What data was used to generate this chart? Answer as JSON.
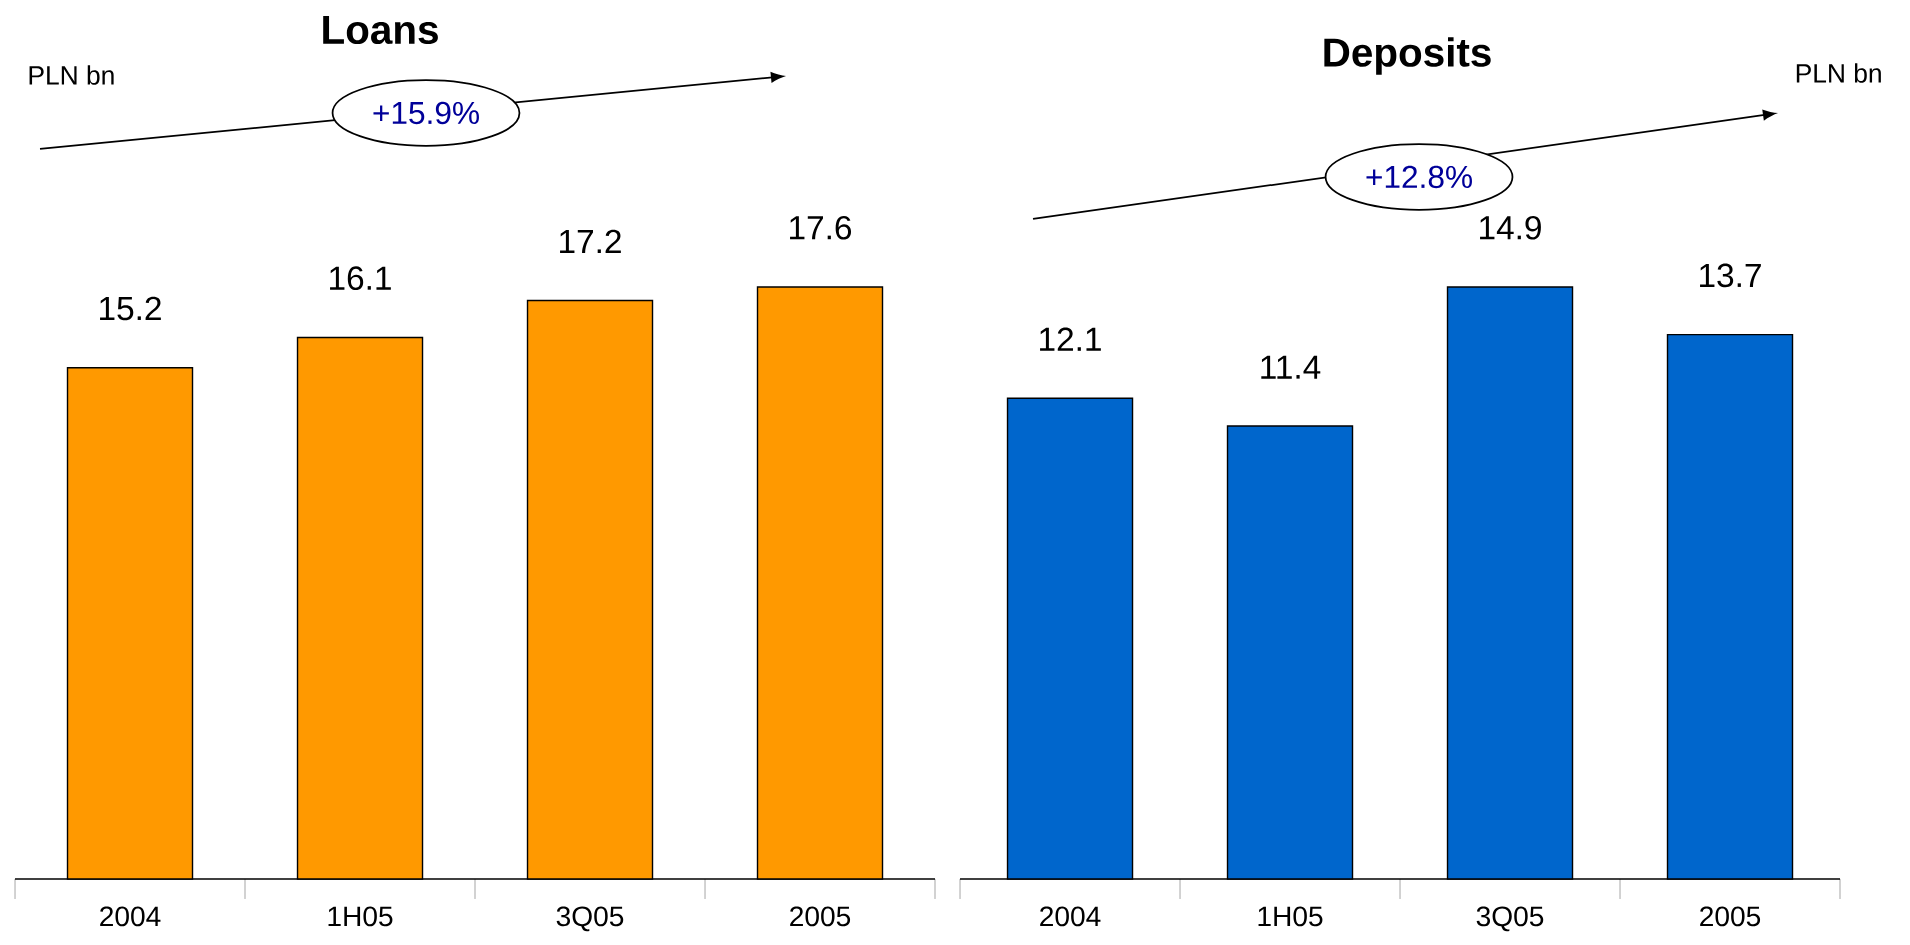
{
  "chart_data": [
    {
      "type": "bar",
      "title": "Loans",
      "categories": [
        "2004",
        "1H05",
        "3Q05",
        "2005"
      ],
      "values": [
        15.2,
        16.1,
        17.2,
        17.6
      ],
      "color": "#ff9900",
      "data_labels": true,
      "annotations": [
        "PLN bn",
        "+15.9%"
      ]
    },
    {
      "type": "bar",
      "title": "Deposits",
      "categories": [
        "2004",
        "1H05",
        "3Q05",
        "2005"
      ],
      "values": [
        12.1,
        11.4,
        14.9,
        13.7
      ],
      "color": "#0066cc",
      "data_labels": true,
      "annotations": [
        "PLN bn",
        "+12.8%"
      ]
    }
  ]
}
